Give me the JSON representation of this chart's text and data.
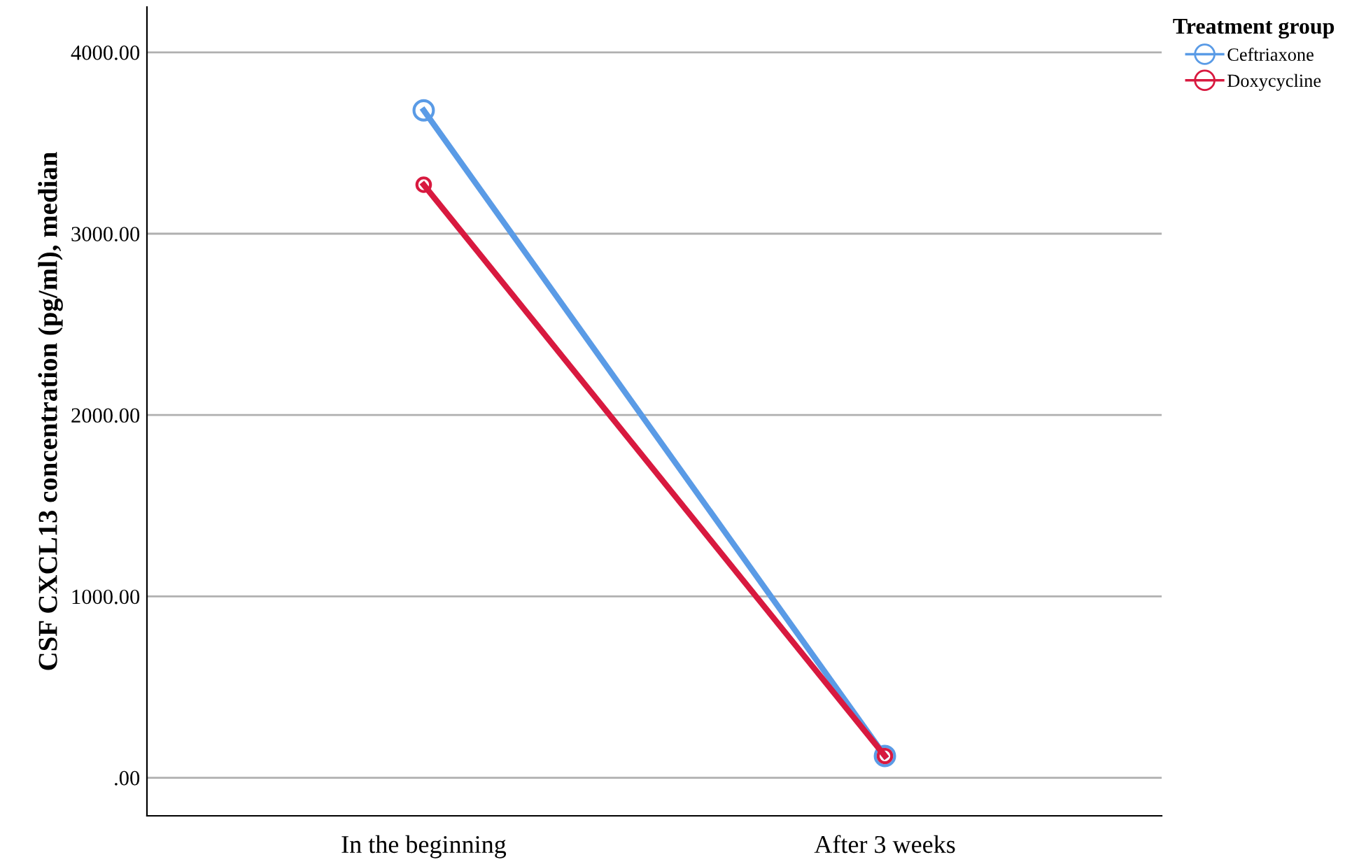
{
  "chart_data": {
    "type": "line",
    "ylabel": "CSF CXCL13 concentration (pg/ml), median",
    "legend_title": "Treatment group",
    "categories": [
      "In the beginning",
      "After 3 weeks"
    ],
    "series": [
      {
        "name": "Ceftriaxone",
        "color": "#5a9be6",
        "values": [
          3680,
          120
        ]
      },
      {
        "name": "Doxycycline",
        "color": "#d8193f",
        "values": [
          3270,
          120
        ]
      }
    ],
    "ylim": [
      -210,
      4250
    ],
    "yticks": [
      {
        "value": 0,
        "label": ".00"
      },
      {
        "value": 1000,
        "label": "1000.00"
      },
      {
        "value": 2000,
        "label": "2000.00"
      },
      {
        "value": 3000,
        "label": "3000.00"
      },
      {
        "value": 4000,
        "label": "4000.00"
      }
    ],
    "grid": "y",
    "legend": "top right",
    "marker": "circle",
    "line_style": "solid"
  }
}
